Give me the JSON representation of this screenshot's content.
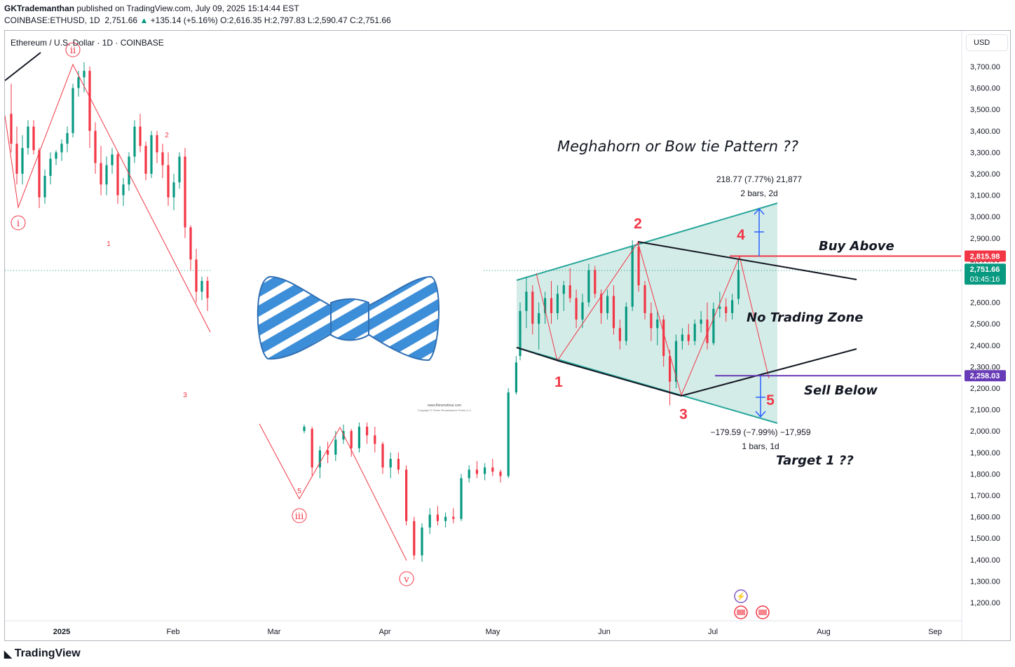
{
  "header": {
    "publisher": "GKTrademanthan",
    "published_text": "published on TradingView.com, July 09, 2025 15:14:44 EST",
    "symbol": "COINBASE:ETHUSD, 1D",
    "last": "2,751.66",
    "change": "+135.14 (+5.16%)",
    "open_label": "O:",
    "open": "2,616.35",
    "high_label": "H:",
    "high": "2,797.83",
    "low_label": "L:",
    "low": "2,590.47",
    "close_label": "C:",
    "close": "2,751.66"
  },
  "legend_title": "Ethereum / U.S. Dollar · 1D · COINBASE",
  "currency_button": "USD",
  "footer": {
    "brand": "TradingView"
  },
  "colors": {
    "up": "#089981",
    "down": "#f23645",
    "pattern": "#26a69a",
    "pattern_fill": "#cde9e4",
    "buy_line": "#f23645",
    "sell_line": "#673ab7"
  },
  "chart_data": {
    "type": "candlestick",
    "symbol": "ETHUSD",
    "interval": "1D",
    "ylim": [
      1150,
      3820
    ],
    "y_ticks": [
      1200,
      1300,
      1400,
      1500,
      1600,
      1700,
      1800,
      1900,
      2000,
      2100,
      2200,
      2300,
      2400,
      2500,
      2600,
      2700,
      2800,
      2900,
      3000,
      3100,
      3200,
      3300,
      3400,
      3500,
      3600,
      3700
    ],
    "y_tick_labels": [
      "1,200.00",
      "1,300.00",
      "1,400.00",
      "1,500.00",
      "1,600.00",
      "1,700.00",
      "1,800.00",
      "1,900.00",
      "2,000.00",
      "2,100.00",
      "2,200.00",
      "2,300.00",
      "2,400.00",
      "2,500.00",
      "2,600.00",
      "2,700.00",
      "2,800.00",
      "2,900.00",
      "3,000.00",
      "3,100.00",
      "3,200.00",
      "3,300.00",
      "3,400.00",
      "3,500.00",
      "3,600.00",
      "3,700.00"
    ],
    "x_labels": [
      "2025",
      "Feb",
      "Mar",
      "Apr",
      "May",
      "Jun",
      "Jul",
      "Aug",
      "Sep"
    ],
    "price_badges": [
      {
        "label": "2,815.98",
        "value": 2815.98,
        "color": "#f23645"
      },
      {
        "label": "2,751.66",
        "sub": "03:45:16",
        "value": 2751.66,
        "color": "#089981"
      },
      {
        "label": "2,258.03",
        "value": 2258.03,
        "color": "#673ab7"
      }
    ],
    "annotations": {
      "title": "Meghahorn or Bow tie Pattern ??",
      "buy_above": "Buy Above",
      "sell_below": "Sell Below",
      "no_trading_zone": "No Trading Zone",
      "target": "Target 1 ??",
      "measure_up": "218.77 (7.77%) 21,877",
      "measure_up_bars": "2 bars, 2d",
      "measure_down": "−179.59 (−7.99%) −17,959",
      "measure_down_bars": "1 bars, 1d",
      "wave_labels": [
        "1",
        "2",
        "3",
        "4",
        "5"
      ],
      "roman_labels": [
        "i",
        "ii",
        "iii",
        "v"
      ],
      "small_labels": [
        "1",
        "2",
        "3",
        "5"
      ],
      "watermark": "www.fitmenstinal.com",
      "watermark_sub": "Copyright © Ronin Renaissance Press LLC"
    },
    "candles_approx": [
      [
        3480,
        3620,
        3300,
        3340
      ],
      [
        3340,
        3420,
        3150,
        3200
      ],
      [
        3200,
        3380,
        3150,
        3320
      ],
      [
        3320,
        3450,
        3290,
        3420
      ],
      [
        3420,
        3450,
        3290,
        3310
      ],
      [
        3310,
        3320,
        3040,
        3090
      ],
      [
        3090,
        3220,
        3060,
        3190
      ],
      [
        3190,
        3300,
        3150,
        3270
      ],
      [
        3270,
        3310,
        3240,
        3300
      ],
      [
        3300,
        3360,
        3260,
        3340
      ],
      [
        3340,
        3420,
        3300,
        3390
      ],
      [
        3390,
        3620,
        3370,
        3600
      ],
      [
        3600,
        3680,
        3560,
        3650
      ],
      [
        3650,
        3720,
        3580,
        3680
      ],
      [
        3680,
        3700,
        3320,
        3400
      ],
      [
        3400,
        3440,
        3200,
        3250
      ],
      [
        3250,
        3330,
        3100,
        3150
      ],
      [
        3150,
        3280,
        3100,
        3240
      ],
      [
        3240,
        3320,
        3200,
        3290
      ],
      [
        3290,
        3300,
        3060,
        3100
      ],
      [
        3100,
        3180,
        3050,
        3150
      ],
      [
        3150,
        3300,
        3120,
        3280
      ],
      [
        3280,
        3450,
        3250,
        3420
      ],
      [
        3420,
        3480,
        3300,
        3330
      ],
      [
        3330,
        3350,
        3170,
        3200
      ],
      [
        3200,
        3400,
        3180,
        3380
      ],
      [
        3380,
        3400,
        3250,
        3300
      ],
      [
        3300,
        3340,
        3180,
        3240
      ],
      [
        3240,
        3300,
        3050,
        3090
      ],
      [
        3090,
        3200,
        3030,
        3160
      ],
      [
        3160,
        3300,
        3130,
        3280
      ],
      [
        3280,
        3320,
        2900,
        2950
      ],
      [
        2950,
        2960,
        2750,
        2800
      ],
      [
        2800,
        2850,
        2600,
        2650
      ],
      [
        2650,
        2720,
        2610,
        2700
      ],
      [
        2700,
        2720,
        2560,
        2620
      ]
    ],
    "candles_approx_2": [
      [
        2000,
        2030,
        1990,
        2020
      ],
      [
        2010,
        2020,
        1790,
        1830
      ],
      [
        1830,
        1930,
        1780,
        1910
      ],
      [
        1910,
        1950,
        1850,
        1890
      ],
      [
        1890,
        2000,
        1860,
        1960
      ],
      [
        1960,
        2030,
        1940,
        2000
      ],
      [
        2000,
        2010,
        1880,
        1920
      ],
      [
        1920,
        2040,
        1900,
        2020
      ],
      [
        2020,
        2040,
        1940,
        1980
      ],
      [
        1980,
        2020,
        1900,
        1940
      ],
      [
        1940,
        1950,
        1800,
        1830
      ],
      [
        1830,
        1900,
        1780,
        1870
      ],
      [
        1870,
        1900,
        1800,
        1820
      ],
      [
        1820,
        1840,
        1560,
        1580
      ],
      [
        1580,
        1600,
        1400,
        1420
      ],
      [
        1420,
        1570,
        1390,
        1550
      ],
      [
        1550,
        1640,
        1520,
        1610
      ],
      [
        1610,
        1650,
        1560,
        1580
      ],
      [
        1580,
        1620,
        1550,
        1600
      ],
      [
        1600,
        1640,
        1570,
        1590
      ],
      [
        1590,
        1800,
        1580,
        1780
      ],
      [
        1780,
        1840,
        1760,
        1820
      ],
      [
        1820,
        1860,
        1780,
        1800
      ],
      [
        1800,
        1850,
        1770,
        1830
      ],
      [
        1830,
        1870,
        1790,
        1810
      ],
      [
        1810,
        1820,
        1760,
        1790
      ],
      [
        1790,
        2200,
        1780,
        2180
      ],
      [
        2180,
        2350,
        2170,
        2320
      ]
    ],
    "candles_approx_3": [
      [
        2350,
        2600,
        2330,
        2560
      ],
      [
        2560,
        2720,
        2480,
        2650
      ],
      [
        2650,
        2680,
        2450,
        2500
      ],
      [
        2500,
        2600,
        2380,
        2550
      ],
      [
        2550,
        2650,
        2500,
        2620
      ],
      [
        2620,
        2700,
        2500,
        2550
      ],
      [
        2550,
        2680,
        2520,
        2640
      ],
      [
        2640,
        2700,
        2560,
        2680
      ],
      [
        2680,
        2760,
        2600,
        2620
      ],
      [
        2620,
        2660,
        2480,
        2520
      ],
      [
        2520,
        2640,
        2480,
        2600
      ],
      [
        2600,
        2780,
        2580,
        2750
      ],
      [
        2750,
        2770,
        2620,
        2640
      ],
      [
        2640,
        2660,
        2500,
        2550
      ],
      [
        2550,
        2660,
        2520,
        2630
      ],
      [
        2630,
        2680,
        2450,
        2480
      ],
      [
        2480,
        2520,
        2380,
        2420
      ],
      [
        2420,
        2600,
        2400,
        2580
      ],
      [
        2580,
        2890,
        2560,
        2860
      ],
      [
        2860,
        2880,
        2650,
        2680
      ],
      [
        2680,
        2700,
        2520,
        2550
      ],
      [
        2550,
        2600,
        2420,
        2480
      ],
      [
        2480,
        2560,
        2400,
        2520
      ],
      [
        2520,
        2540,
        2300,
        2350
      ],
      [
        2350,
        2380,
        2120,
        2230
      ],
      [
        2230,
        2450,
        2200,
        2420
      ],
      [
        2420,
        2480,
        2380,
        2450
      ],
      [
        2450,
        2500,
        2400,
        2420
      ],
      [
        2420,
        2520,
        2400,
        2500
      ],
      [
        2500,
        2560,
        2460,
        2520
      ],
      [
        2520,
        2600,
        2380,
        2410
      ],
      [
        2410,
        2600,
        2400,
        2570
      ],
      [
        2570,
        2650,
        2530,
        2580
      ],
      [
        2580,
        2620,
        2510,
        2550
      ],
      [
        2550,
        2640,
        2520,
        2610
      ],
      [
        2616.35,
        2797.83,
        2590.47,
        2751.66
      ]
    ]
  }
}
